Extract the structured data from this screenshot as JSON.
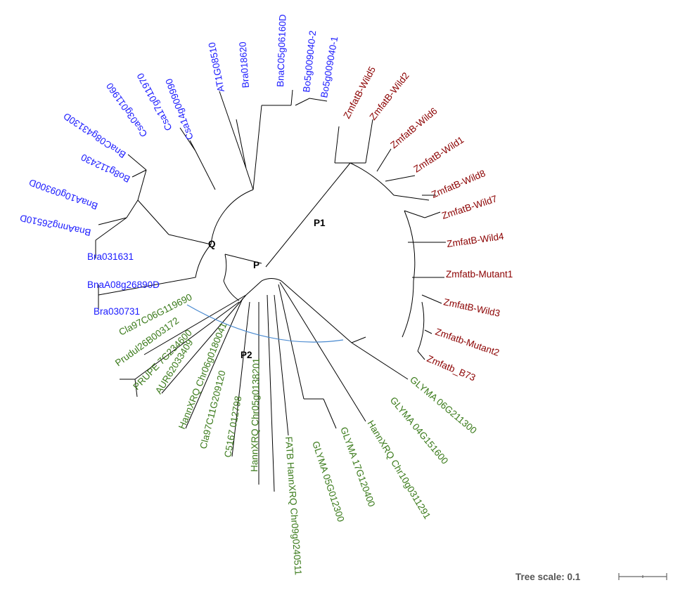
{
  "colors": {
    "group_blue": "#1a1aff",
    "group_red": "#8b0000",
    "group_green": "#3a7a1a",
    "arc": "#4a8ad0",
    "branch": "#000000"
  },
  "node_labels": {
    "q": "Q",
    "p": "P",
    "p1": "P1",
    "p2": "P2"
  },
  "tree_scale": {
    "label": "Tree scale: 0.1"
  },
  "leaves": [
    {
      "label": "Bo5g009040-1",
      "group": "blue"
    },
    {
      "label": "Bo5g009040-2",
      "group": "blue"
    },
    {
      "label": "BnaC05g06160D",
      "group": "blue"
    },
    {
      "label": "Bra018620",
      "group": "blue"
    },
    {
      "label": "AT1G08510",
      "group": "blue"
    },
    {
      "label": "Csa14g009990",
      "group": "blue"
    },
    {
      "label": "Csa17g011970",
      "group": "blue"
    },
    {
      "label": "Csa03g011960",
      "group": "blue"
    },
    {
      "label": "BnaC08g43130D",
      "group": "blue"
    },
    {
      "label": "Bo8g112430",
      "group": "blue"
    },
    {
      "label": "BnaA10g09300D",
      "group": "blue"
    },
    {
      "label": "BnaAnng26510D",
      "group": "blue"
    },
    {
      "label": "Bra031631",
      "group": "blue"
    },
    {
      "label": "BnaA08g26890D",
      "group": "blue"
    },
    {
      "label": "Bra030731",
      "group": "blue"
    },
    {
      "label": "Cla97C06G119690",
      "group": "green"
    },
    {
      "label": "Prudul26B003172",
      "group": "green"
    },
    {
      "label": "PRUPE 7G234600",
      "group": "green"
    },
    {
      "label": "AUR62033409",
      "group": "green"
    },
    {
      "label": "HannXRQ Chr06g0180041",
      "group": "green"
    },
    {
      "label": "Cla97C11G209120",
      "group": "green"
    },
    {
      "label": "C5167 012798",
      "group": "green"
    },
    {
      "label": "HannXRQ Chr05g0138201",
      "group": "green"
    },
    {
      "label": "FATB HannXRQ Chr09g0240511",
      "group": "green"
    },
    {
      "label": "GLYMA 05G012300",
      "group": "green"
    },
    {
      "label": "GLYMA 17G120400",
      "group": "green"
    },
    {
      "label": "HannXRQ Chr10g0311291",
      "group": "green"
    },
    {
      "label": "GLYMA 04G151600",
      "group": "green"
    },
    {
      "label": "GLYMA 06G211300",
      "group": "green"
    },
    {
      "label": "Zmfatb_B73",
      "group": "red"
    },
    {
      "label": "Zmfatb-Mutant2",
      "group": "red"
    },
    {
      "label": "ZmfatB-Wild3",
      "group": "red"
    },
    {
      "label": "Zmfatb-Mutant1",
      "group": "red"
    },
    {
      "label": "ZmfatB-Wild4",
      "group": "red"
    },
    {
      "label": "ZmfatB-Wild7",
      "group": "red"
    },
    {
      "label": "ZmfatB-Wild8",
      "group": "red"
    },
    {
      "label": "ZmfatB-Wild1",
      "group": "red"
    },
    {
      "label": "ZmfatB-Wild6",
      "group": "red"
    },
    {
      "label": "ZmfatB-Wild2",
      "group": "red"
    },
    {
      "label": "ZmfatB-Wild5",
      "group": "red"
    }
  ]
}
